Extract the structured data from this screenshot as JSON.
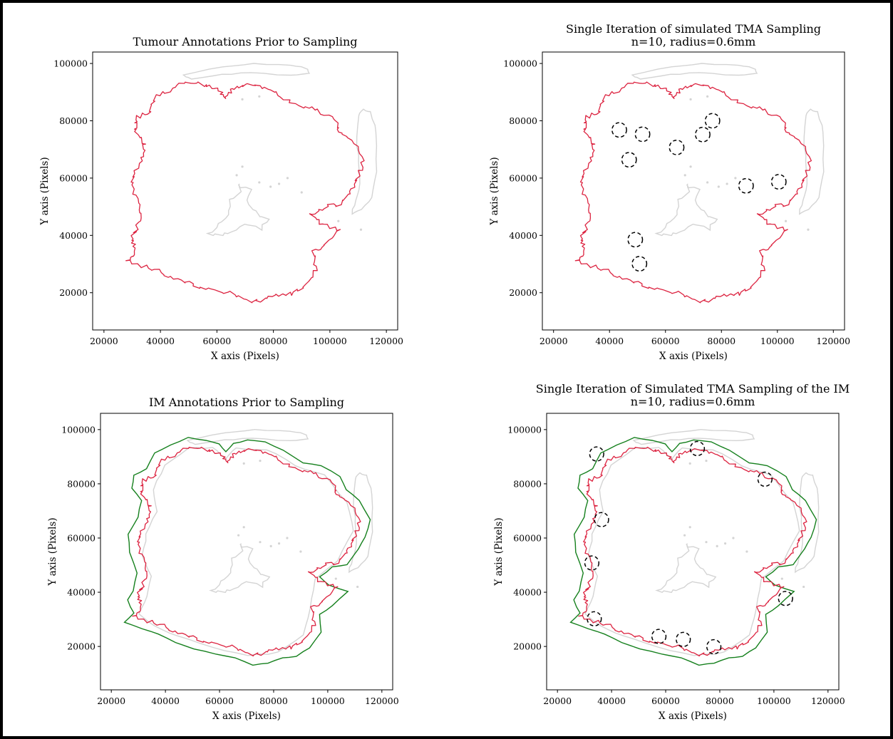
{
  "chart_data": [
    {
      "type": "line",
      "title": "Tumour Annotations Prior to Sampling",
      "subtitle": "",
      "xlabel": "X axis (Pixels)",
      "ylabel": "Y axis (Pixels)",
      "xlim": [
        16000,
        124000
      ],
      "ylim": [
        7000,
        104000
      ],
      "xticks": [
        "20000",
        "40000",
        "60000",
        "80000",
        "100000",
        "120000"
      ],
      "yticks": [
        "20000",
        "40000",
        "60000",
        "80000",
        "100000"
      ],
      "colors": {
        "tumour": "#dc2340",
        "tissue": "#d4d4d4",
        "im": "#15801d",
        "sample": "#000000"
      },
      "show_im": false,
      "samples": []
    },
    {
      "type": "line",
      "title": "Single Iteration of simulated TMA Sampling",
      "subtitle": "n=10, radius=0.6mm",
      "xlabel": "X axis (Pixels)",
      "ylabel": "Y axis (Pixels)",
      "xlim": [
        16000,
        124000
      ],
      "ylim": [
        7000,
        104000
      ],
      "xticks": [
        "20000",
        "40000",
        "60000",
        "80000",
        "100000",
        "120000"
      ],
      "yticks": [
        "20000",
        "40000",
        "60000",
        "80000",
        "100000"
      ],
      "colors": {
        "tumour": "#dc2340",
        "tissue": "#d4d4d4",
        "im": "#15801d",
        "sample": "#000000"
      },
      "show_im": false,
      "samples": [
        [
          43500,
          76800
        ],
        [
          51800,
          75300
        ],
        [
          47000,
          66400
        ],
        [
          64000,
          70700
        ],
        [
          73300,
          75200
        ],
        [
          76800,
          80000
        ],
        [
          88800,
          57300
        ],
        [
          100500,
          58700
        ],
        [
          49200,
          38500
        ],
        [
          50700,
          30100
        ]
      ]
    },
    {
      "type": "line",
      "title": "IM Annotations Prior to Sampling",
      "subtitle": "",
      "xlabel": "X axis (Pixels)",
      "ylabel": "Y axis (Pixels)",
      "xlim": [
        16000,
        124000
      ],
      "ylim": [
        4000,
        106000
      ],
      "xticks": [
        "20000",
        "40000",
        "60000",
        "80000",
        "100000",
        "120000"
      ],
      "yticks": [
        "20000",
        "40000",
        "60000",
        "80000",
        "100000"
      ],
      "colors": {
        "tumour": "#dc2340",
        "tissue": "#d4d4d4",
        "im": "#15801d",
        "sample": "#000000"
      },
      "show_im": true,
      "samples": []
    },
    {
      "type": "line",
      "title": "Single Iteration of Simulated TMA Sampling of the IM",
      "subtitle": "n=10, radius=0.6mm",
      "xlabel": "X axis (Pixels)",
      "ylabel": "Y axis (Pixels)",
      "xlim": [
        16000,
        124000
      ],
      "ylim": [
        4000,
        106000
      ],
      "xticks": [
        "20000",
        "40000",
        "60000",
        "80000",
        "100000",
        "120000"
      ],
      "yticks": [
        "20000",
        "40000",
        "60000",
        "80000",
        "100000"
      ],
      "colors": {
        "tumour": "#dc2340",
        "tissue": "#d4d4d4",
        "im": "#15801d",
        "sample": "#000000"
      },
      "show_im": true,
      "samples": [
        [
          34500,
          91000
        ],
        [
          71700,
          93000
        ],
        [
          96700,
          81700
        ],
        [
          36300,
          66800
        ],
        [
          32700,
          50800
        ],
        [
          104300,
          37700
        ],
        [
          33600,
          30200
        ],
        [
          57500,
          23700
        ],
        [
          66500,
          22600
        ],
        [
          77800,
          19900
        ]
      ]
    }
  ]
}
